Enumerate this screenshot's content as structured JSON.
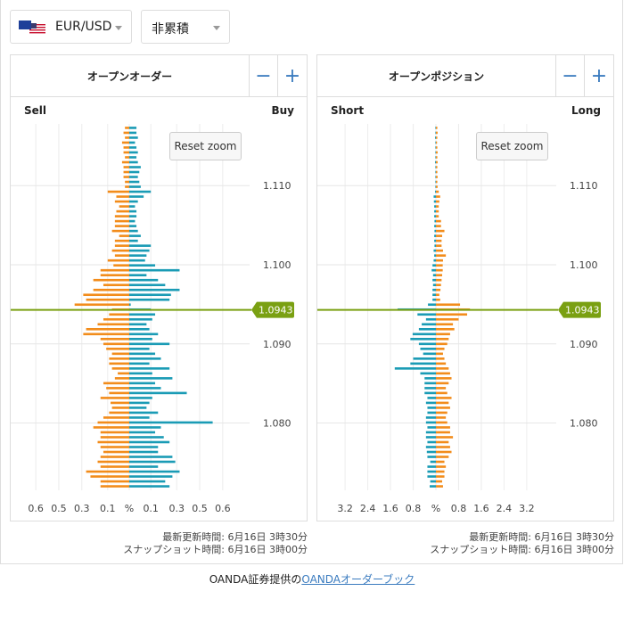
{
  "controls": {
    "pair_label": "EUR/USD",
    "mode_label": "非累積"
  },
  "panels": {
    "orders": {
      "title": "オープンオーダー",
      "left_label": "Sell",
      "right_label": "Buy",
      "reset_label": "Reset zoom",
      "zoom_out": "−",
      "zoom_in": "+",
      "updated": "最新更新時間: 6月16日 3時30分",
      "snapshot": "スナップショット時間: 6月16日 3時00分",
      "x_ticks": [
        "0.6",
        "0.5",
        "0.3",
        "0.1",
        "%",
        "0.1",
        "0.3",
        "0.5",
        "0.6"
      ],
      "y_ticks": [
        "1.110",
        "1.100",
        "1.090",
        "1.080"
      ],
      "current_price": "1.0943"
    },
    "positions": {
      "title": "オープンポジション",
      "left_label": "Short",
      "right_label": "Long",
      "reset_label": "Reset zoom",
      "zoom_out": "−",
      "zoom_in": "+",
      "updated": "最新更新時間: 6月16日 3時30分",
      "snapshot": "スナップショット時間: 6月16日 3時00分",
      "x_ticks": [
        "3.2",
        "2.4",
        "1.6",
        "0.8",
        "%",
        "0.8",
        "1.6",
        "2.4",
        "3.2"
      ],
      "y_ticks": [
        "1.110",
        "1.100",
        "1.090",
        "1.080"
      ],
      "current_price": "1.0943"
    }
  },
  "credit": {
    "prefix": "OANDA証券提供の",
    "link": "OANDAオーダーブック"
  },
  "colors": {
    "blue": "#1a9bb5",
    "orange": "#f28c1b",
    "price_line": "#7aa012"
  },
  "chart_data": [
    {
      "type": "bar",
      "title": "オープンオーダー",
      "current_price": 1.0943,
      "ylim": [
        1.0715,
        1.1178
      ],
      "xlim": [
        -0.75,
        0.75
      ],
      "price_step": 0.001,
      "series": [
        {
          "name": "Buy",
          "values": [
            0.05,
            0.05,
            0.06,
            0.04,
            0.05,
            0.06,
            0.05,
            0.06,
            0.08,
            0.07,
            0.06,
            0.07,
            0.08,
            0.15,
            0.1,
            0.06,
            0.04,
            0.05,
            0.05,
            0.04,
            0.05,
            0.06,
            0.08,
            0.06,
            0.15,
            0.14,
            0.12,
            0.11,
            0.18,
            0.35,
            0.12,
            0.2,
            0.25,
            0.35,
            0.29,
            0.28,
            0.01,
            0.15,
            0.18,
            0.16,
            0.12,
            0.14,
            0.2,
            0.16,
            0.28,
            0.14,
            0.18,
            0.22,
            0.14,
            0.28,
            0.16,
            0.3,
            0.18,
            0.22,
            0.4,
            0.16,
            0.14,
            0.12,
            0.2,
            0.14,
            0.58,
            0.22,
            0.18,
            0.24,
            0.28,
            0.2,
            0.2,
            0.3,
            0.32,
            0.2,
            0.35,
            0.3,
            0.25,
            0.28
          ]
        },
        {
          "name": "Sell",
          "values": [
            0.03,
            0.04,
            0.03,
            0.05,
            0.04,
            0.04,
            0.03,
            0.05,
            0.04,
            0.04,
            0.04,
            0.03,
            0.03,
            0.15,
            0.09,
            0.1,
            0.07,
            0.09,
            0.1,
            0.1,
            0.1,
            0.12,
            0.07,
            0.1,
            0.1,
            0.12,
            0.1,
            0.15,
            0.11,
            0.2,
            0.2,
            0.25,
            0.18,
            0.25,
            0.32,
            0.3,
            0.38,
            0.12,
            0.14,
            0.18,
            0.22,
            0.3,
            0.32,
            0.2,
            0.18,
            0.16,
            0.12,
            0.14,
            0.14,
            0.12,
            0.08,
            0.1,
            0.18,
            0.16,
            0.14,
            0.2,
            0.13,
            0.12,
            0.14,
            0.18,
            0.22,
            0.25,
            0.2,
            0.2,
            0.22,
            0.2,
            0.18,
            0.2,
            0.22,
            0.2,
            0.3,
            0.27,
            0.2,
            0.2
          ]
        }
      ]
    },
    {
      "type": "bar",
      "title": "オープンポジション",
      "current_price": 1.0943,
      "ylim": [
        1.0715,
        1.1178
      ],
      "xlim": [
        -3.8,
        3.8
      ],
      "price_step": 0.001,
      "series": [
        {
          "name": "Long",
          "values": [
            0.05,
            0.06,
            0.05,
            0.04,
            0.05,
            0.06,
            0.05,
            0.06,
            0.05,
            0.05,
            0.06,
            0.05,
            0.06,
            0.1,
            0.15,
            0.12,
            0.1,
            0.1,
            0.1,
            0.18,
            0.18,
            0.3,
            0.22,
            0.2,
            0.2,
            0.25,
            0.35,
            0.25,
            0.24,
            0.24,
            0.22,
            0.2,
            0.18,
            0.16,
            0.12,
            0.15,
            0.85,
            1.2,
            1.1,
            0.8,
            0.6,
            0.65,
            0.5,
            0.45,
            0.4,
            0.3,
            0.25,
            0.3,
            0.35,
            0.45,
            0.5,
            0.55,
            0.45,
            0.35,
            0.4,
            0.55,
            0.45,
            0.5,
            0.4,
            0.35,
            0.4,
            0.5,
            0.5,
            0.6,
            0.45,
            0.5,
            0.55,
            0.45,
            0.3,
            0.35,
            0.3,
            0.3,
            0.22,
            0.25
          ]
        },
        {
          "name": "Short",
          "values": [
            0.02,
            0.02,
            0.03,
            0.02,
            0.02,
            0.02,
            0.02,
            0.03,
            0.02,
            0.02,
            0.02,
            0.02,
            0.02,
            0.03,
            0.08,
            0.07,
            0.06,
            0.06,
            0.06,
            0.05,
            0.06,
            0.05,
            0.06,
            0.06,
            0.05,
            0.08,
            0.06,
            0.08,
            0.12,
            0.15,
            0.1,
            0.12,
            0.1,
            0.12,
            0.12,
            0.12,
            0.28,
            1.35,
            0.65,
            0.35,
            0.5,
            0.6,
            0.82,
            0.9,
            0.6,
            0.55,
            0.45,
            0.8,
            0.9,
            1.45,
            0.55,
            0.4,
            0.4,
            0.4,
            0.4,
            0.3,
            0.35,
            0.3,
            0.3,
            0.35,
            0.35,
            0.3,
            0.35,
            0.35,
            0.3,
            0.35,
            0.32,
            0.3,
            0.2,
            0.3,
            0.3,
            0.3,
            0.2,
            0.22
          ]
        }
      ]
    }
  ]
}
